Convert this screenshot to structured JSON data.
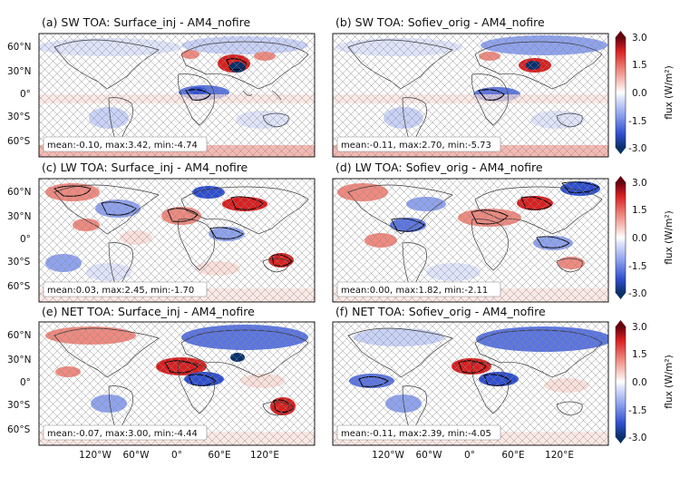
{
  "figure": {
    "panels": [
      {
        "id": "a",
        "title": "(a) SW TOA: Surface_inj - AM4_nofire",
        "stats": "mean:-0.10, max:3.42, min:-4.74"
      },
      {
        "id": "b",
        "title": "(b) SW TOA: Sofiev_orig - AM4_nofire",
        "stats": "mean:-0.11, max:2.70, min:-5.73"
      },
      {
        "id": "c",
        "title": "(c) LW TOA: Surface_inj - AM4_nofire",
        "stats": "mean:0.03, max:2.45, min:-1.70"
      },
      {
        "id": "d",
        "title": "(d) LW TOA: Sofiev_orig - AM4_nofire",
        "stats": "mean:0.00, max:1.82, min:-2.11"
      },
      {
        "id": "e",
        "title": "(e) NET TOA: Surface_inj - AM4_nofire",
        "stats": "mean:-0.07, max:3.00, min:-4.44"
      },
      {
        "id": "f",
        "title": "(f) NET TOA: Sofiev_orig - AM4_nofire",
        "stats": "mean:-0.11, max:2.39, min:-4.05"
      }
    ],
    "lat_ticks": [
      "60°N",
      "30°N",
      "0°",
      "30°S",
      "60°S"
    ],
    "lon_ticks": [
      "120°W",
      "60°W",
      "0°",
      "60°E",
      "120°E"
    ],
    "colorbar": {
      "label": "flux (W/m²)",
      "ticks": [
        "3.0",
        "1.5",
        "0.0",
        "-1.5",
        "-3.0"
      ],
      "range": [
        -3.0,
        3.0
      ],
      "colormap": [
        "#08306b",
        "#2f4fd0",
        "#8fa3ee",
        "#dfe4fb",
        "#ffffff",
        "#fbe0dc",
        "#ef8a80",
        "#d92020",
        "#67000d"
      ]
    }
  }
}
